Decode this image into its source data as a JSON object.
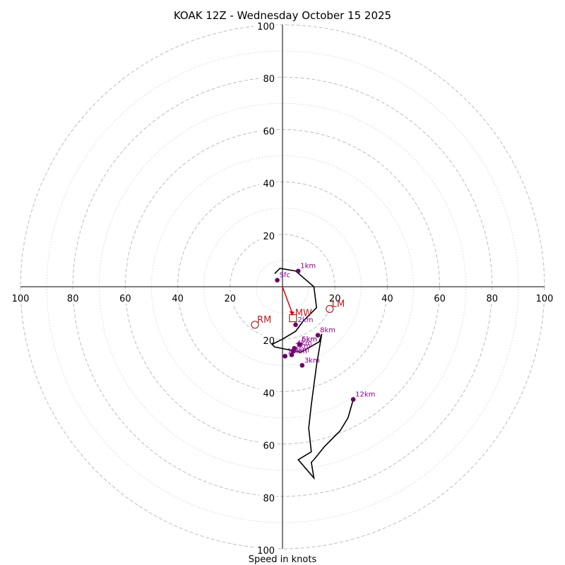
{
  "chart_data": {
    "type": "scatter",
    "title": "KOAK 12Z - Wednesday October 15 2025",
    "xlabel": "Speed in knots",
    "ylabel": "",
    "xlim": [
      -100,
      100
    ],
    "ylim": [
      -100,
      100
    ],
    "rings_major": [
      20,
      40,
      60,
      80,
      100
    ],
    "rings_minor": [
      10,
      30,
      50,
      70,
      90
    ],
    "tick_labels": [
      "20",
      "40",
      "60",
      "80",
      "100"
    ],
    "hodograph": {
      "x": [
        -3,
        -1,
        5,
        12,
        13,
        8,
        5,
        0,
        -4,
        -3,
        2,
        7,
        14,
        15,
        13,
        11,
        10,
        11,
        6,
        12,
        11,
        12,
        16,
        22,
        25,
        27
      ],
      "y": [
        5,
        7,
        6,
        0,
        -8,
        -13,
        -17,
        -20,
        -22,
        -23,
        -24,
        -25,
        -21,
        -18,
        -30,
        -45,
        -54,
        -63,
        -66,
        -73,
        -67,
        -66,
        -61,
        -55,
        -50,
        -43
      ]
    },
    "points": [
      {
        "label": "Sfc",
        "x": -2,
        "y": 2.5
      },
      {
        "label": "1km",
        "x": 6,
        "y": 6
      },
      {
        "label": "2km",
        "x": 5,
        "y": -14.5
      },
      {
        "label": "3km",
        "x": 7.5,
        "y": -30
      },
      {
        "label": "4km",
        "x": 4.5,
        "y": -23.5
      },
      {
        "label": "5km",
        "x": 6.5,
        "y": -22
      },
      {
        "label": "6km",
        "x": 6.5,
        "y": -22
      },
      {
        "label": "7km",
        "x": 4,
        "y": -24.5
      },
      {
        "label": "8km",
        "x": 13.5,
        "y": -18.5
      },
      {
        "label": "9km",
        "x": 3.5,
        "y": -26
      },
      {
        "label": "10km",
        "x": 1,
        "y": -26.5
      },
      {
        "label": "12km",
        "x": 27,
        "y": -43
      }
    ],
    "storm_motions": [
      {
        "label": "RM",
        "x": -10.5,
        "y": -14.5,
        "marker": "circle"
      },
      {
        "label": "LM",
        "x": 18,
        "y": -8.5,
        "marker": "circle"
      },
      {
        "label": "MW",
        "x": 4,
        "y": -12,
        "marker": "square"
      }
    ],
    "colors": {
      "hodograph": "#000000",
      "points": "#6a006a",
      "point_labels": "#8a008a",
      "storm_motion": "#b22222",
      "mean_wind_arrow": "#e0000f",
      "grid": "#bdbdbd"
    }
  }
}
